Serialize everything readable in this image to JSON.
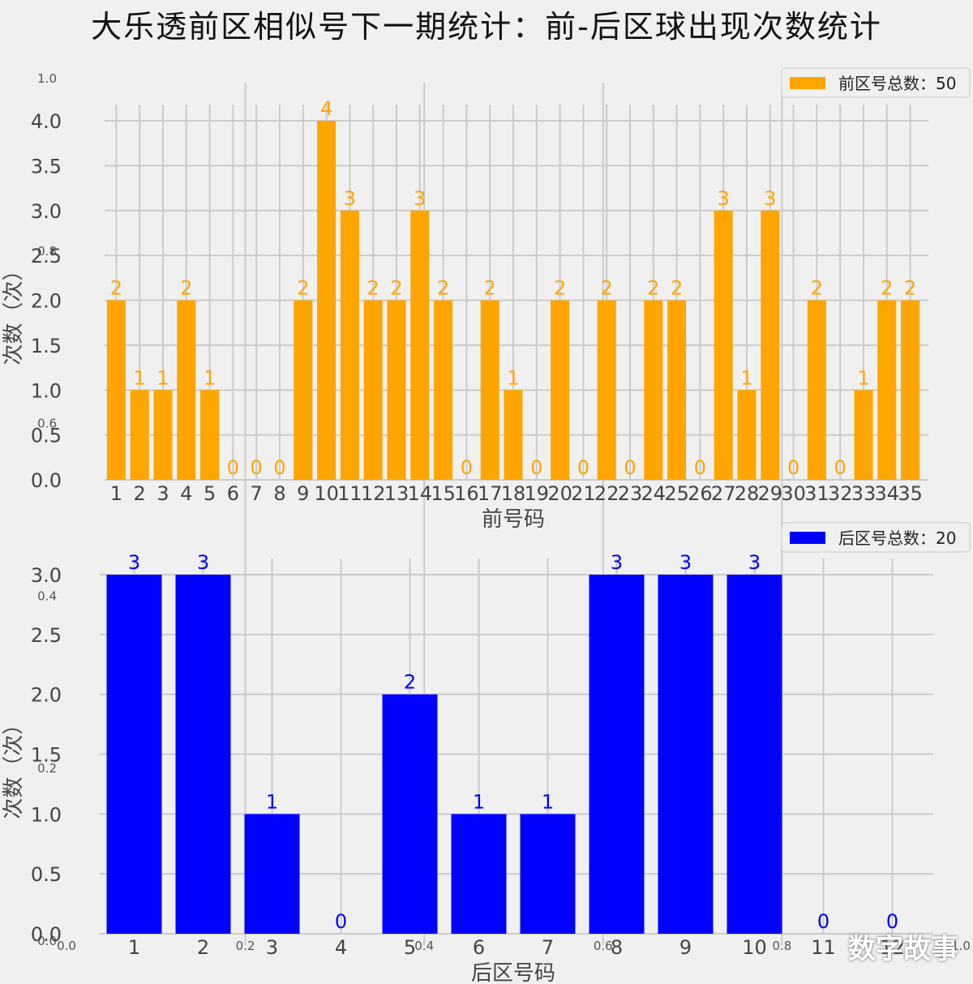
{
  "title": "大乐透前区相似号下一期统计：前-后区球出现次数统计",
  "watermark": "数字故事",
  "colors": {
    "front": "#ffa500",
    "back": "#0000ff",
    "grid": "#cbcbcb",
    "bg": "#f0f0f0",
    "axis_text": "#444444"
  },
  "chart_data": [
    {
      "type": "bar",
      "xlabel": "前号码",
      "ylabel": "次数（次）",
      "ylim": [
        0,
        4.0
      ],
      "yticks": [
        "0.0",
        "0.5",
        "1.0",
        "1.5",
        "2.0",
        "2.5",
        "3.0",
        "3.5",
        "4.0"
      ],
      "legend": "前区号总数：50",
      "legend_position": "top-right",
      "grid": true,
      "categories": [
        "1",
        "2",
        "3",
        "4",
        "5",
        "6",
        "7",
        "8",
        "9",
        "10",
        "11",
        "12",
        "13",
        "14",
        "15",
        "16",
        "17",
        "18",
        "19",
        "20",
        "21",
        "22",
        "23",
        "24",
        "25",
        "26",
        "27",
        "28",
        "29",
        "30",
        "31",
        "32",
        "33",
        "34",
        "35"
      ],
      "values": [
        2,
        1,
        1,
        2,
        1,
        0,
        0,
        0,
        2,
        4,
        3,
        2,
        2,
        3,
        2,
        0,
        2,
        1,
        0,
        2,
        0,
        2,
        0,
        2,
        2,
        0,
        3,
        1,
        3,
        0,
        2,
        0,
        1,
        2,
        2
      ]
    },
    {
      "type": "bar",
      "xlabel": "后区号码",
      "ylabel": "次数（次）",
      "ylim": [
        0,
        3.0
      ],
      "yticks": [
        "0.0",
        "0.5",
        "1.0",
        "1.5",
        "2.0",
        "2.5",
        "3.0"
      ],
      "legend": "后区号总数：20",
      "legend_position": "top-right",
      "grid": true,
      "categories": [
        "1",
        "2",
        "3",
        "4",
        "5",
        "6",
        "7",
        "8",
        "9",
        "10",
        "11",
        "12"
      ],
      "values": [
        3,
        3,
        1,
        0,
        2,
        1,
        1,
        3,
        3,
        3,
        0,
        0
      ]
    }
  ],
  "ghost_axis": {
    "ticks": [
      "0.0",
      "0.2",
      "0.4",
      "0.6",
      "0.8",
      "1.0"
    ]
  }
}
